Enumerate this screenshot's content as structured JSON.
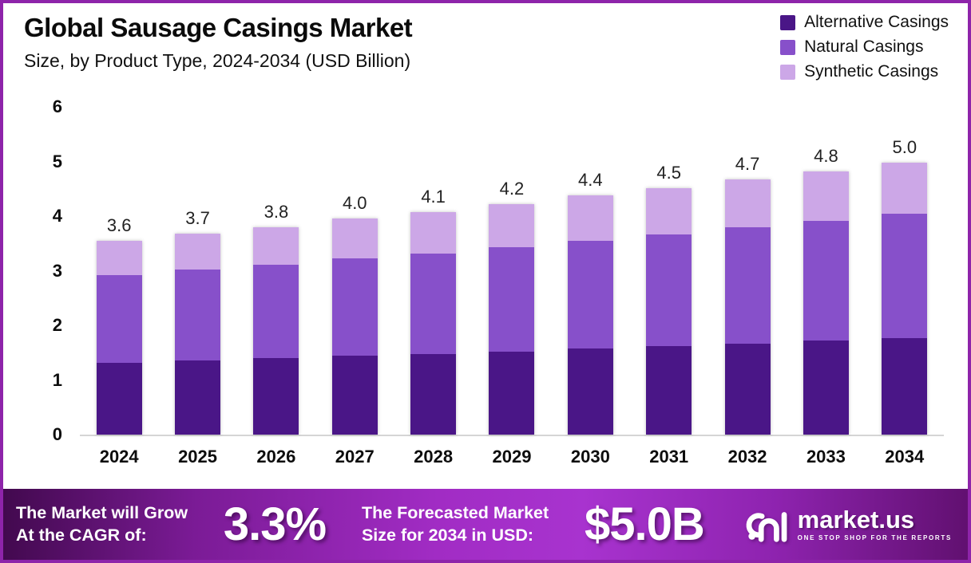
{
  "header": {
    "title": "Global Sausage Casings Market",
    "subtitle": "Size, by Product Type, 2024-2034 (USD Billion)"
  },
  "colors": {
    "frame_border": "#8E24AA",
    "alternative": "#4A1687",
    "natural": "#8750CA",
    "synthetic": "#CCA7E7",
    "axis_line": "#d5d5d5"
  },
  "chart_data": {
    "type": "bar",
    "stacked": true,
    "title": "Global Sausage Casings Market",
    "subtitle": "Size, by Product Type, 2024-2034 (USD Billion)",
    "categories": [
      "2024",
      "2025",
      "2026",
      "2027",
      "2028",
      "2029",
      "2030",
      "2031",
      "2032",
      "2033",
      "2034"
    ],
    "series": [
      {
        "name": "Alternative Casings",
        "color": "#4A1687",
        "values": [
          1.32,
          1.36,
          1.4,
          1.44,
          1.48,
          1.52,
          1.57,
          1.62,
          1.67,
          1.72,
          1.77
        ]
      },
      {
        "name": "Natural Casings",
        "color": "#8750CA",
        "values": [
          1.6,
          1.66,
          1.71,
          1.78,
          1.84,
          1.91,
          1.98,
          2.04,
          2.12,
          2.19,
          2.27
        ]
      },
      {
        "name": "Synthetic Casings",
        "color": "#CCA7E7",
        "values": [
          0.63,
          0.66,
          0.69,
          0.73,
          0.76,
          0.79,
          0.83,
          0.85,
          0.88,
          0.91,
          0.94
        ]
      }
    ],
    "total_labels": [
      "3.6",
      "3.7",
      "3.8",
      "4.0",
      "4.1",
      "4.2",
      "4.4",
      "4.5",
      "4.7",
      "4.8",
      "5.0"
    ],
    "xlabel": "",
    "ylabel": "",
    "ylim": [
      0,
      6
    ],
    "yticks": [
      0,
      1,
      2,
      3,
      4,
      5,
      6
    ],
    "grid": false,
    "legend_position": "top-right"
  },
  "footer": {
    "cagr_label_line1": "The Market will Grow",
    "cagr_label_line2": "At the CAGR of:",
    "cagr_value": "3.3%",
    "forecast_label_line1": "The Forecasted Market",
    "forecast_label_line2": "Size for 2034 in USD:",
    "forecast_value": "$5.0B",
    "brand": {
      "name": "market.us",
      "tagline": "ONE STOP SHOP FOR THE REPORTS"
    }
  }
}
